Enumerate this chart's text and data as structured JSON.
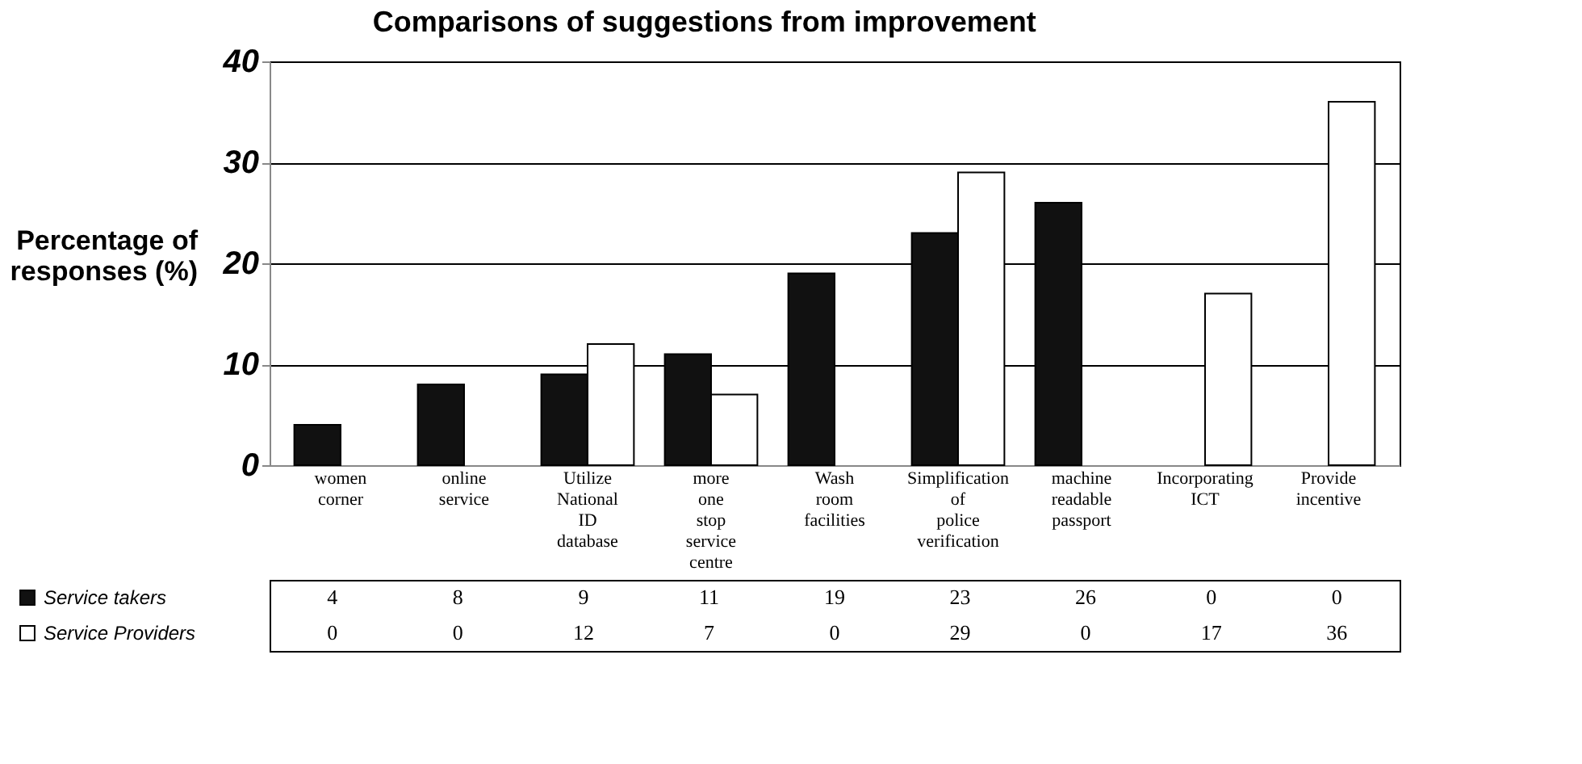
{
  "chart_data": {
    "type": "bar",
    "title": "Comparisons of suggestions from improvement",
    "ylabel": "Percentage of responses (%)",
    "categories": [
      "women corner",
      "online service",
      "Utilize National ID database",
      "more one stop service centre",
      "Wash room facilities",
      "Simplification of police verification",
      "machine readable passport",
      "Incorporating ICT",
      "Provide incentive"
    ],
    "series": [
      {
        "name": "Service takers",
        "color": "#111111",
        "values": [
          4,
          8,
          9,
          11,
          19,
          23,
          26,
          0,
          0
        ]
      },
      {
        "name": "Service Providers",
        "color": "#ffffff",
        "values": [
          0,
          0,
          12,
          7,
          0,
          29,
          0,
          17,
          36
        ]
      }
    ],
    "ylim": [
      0,
      40
    ],
    "yticks": [
      0,
      10,
      20,
      30,
      40
    ],
    "grid": "y",
    "legend": "bottom left",
    "data_labels": true
  }
}
